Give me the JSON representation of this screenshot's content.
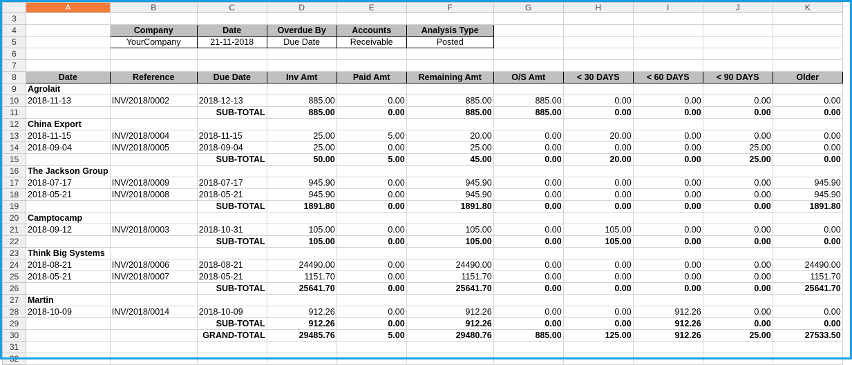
{
  "columns": [
    "A",
    "B",
    "C",
    "D",
    "E",
    "F",
    "G",
    "H",
    "I",
    "J",
    "K"
  ],
  "selected_column": "A",
  "info_headers": [
    "Company",
    "Date",
    "Overdue By",
    "Accounts",
    "Analysis Type"
  ],
  "info_values": [
    "YourCompany",
    "21-11-2018",
    "Due Date",
    "Receivable",
    "Posted"
  ],
  "table_headers": [
    "Date",
    "Reference",
    "Due Date",
    "Inv Amt",
    "Paid Amt",
    "Remaining Amt",
    "O/S Amt",
    "< 30 DAYS",
    "< 60 DAYS",
    "< 90 DAYS",
    "Older"
  ],
  "groups": [
    {
      "name": "Agrolait",
      "rows": [
        [
          "2018-11-13",
          "INV/2018/0002",
          "2018-12-13",
          "885.00",
          "0.00",
          "885.00",
          "885.00",
          "0.00",
          "0.00",
          "0.00",
          "0.00"
        ]
      ],
      "subtotal": [
        "885.00",
        "0.00",
        "885.00",
        "885.00",
        "0.00",
        "0.00",
        "0.00",
        "0.00"
      ]
    },
    {
      "name": "China Export",
      "rows": [
        [
          "2018-11-15",
          "INV/2018/0004",
          "2018-11-15",
          "25.00",
          "5.00",
          "20.00",
          "0.00",
          "20.00",
          "0.00",
          "0.00",
          "0.00"
        ],
        [
          "2018-09-04",
          "INV/2018/0005",
          "2018-09-04",
          "25.00",
          "0.00",
          "25.00",
          "0.00",
          "0.00",
          "0.00",
          "25.00",
          "0.00"
        ]
      ],
      "subtotal": [
        "50.00",
        "5.00",
        "45.00",
        "0.00",
        "20.00",
        "0.00",
        "25.00",
        "0.00"
      ]
    },
    {
      "name": "The Jackson Group",
      "rows": [
        [
          "2018-07-17",
          "INV/2018/0009",
          "2018-07-17",
          "945.90",
          "0.00",
          "945.90",
          "0.00",
          "0.00",
          "0.00",
          "0.00",
          "945.90"
        ],
        [
          "2018-05-21",
          "INV/2018/0008",
          "2018-05-21",
          "945.90",
          "0.00",
          "945.90",
          "0.00",
          "0.00",
          "0.00",
          "0.00",
          "945.90"
        ]
      ],
      "subtotal": [
        "1891.80",
        "0.00",
        "1891.80",
        "0.00",
        "0.00",
        "0.00",
        "0.00",
        "1891.80"
      ]
    },
    {
      "name": "Camptocamp",
      "rows": [
        [
          "2018-09-12",
          "INV/2018/0003",
          "2018-10-31",
          "105.00",
          "0.00",
          "105.00",
          "0.00",
          "105.00",
          "0.00",
          "0.00",
          "0.00"
        ]
      ],
      "subtotal": [
        "105.00",
        "0.00",
        "105.00",
        "0.00",
        "105.00",
        "0.00",
        "0.00",
        "0.00"
      ]
    },
    {
      "name": "Think Big Systems",
      "rows": [
        [
          "2018-08-21",
          "INV/2018/0006",
          "2018-08-21",
          "24490.00",
          "0.00",
          "24490.00",
          "0.00",
          "0.00",
          "0.00",
          "0.00",
          "24490.00"
        ],
        [
          "2018-05-21",
          "INV/2018/0007",
          "2018-05-21",
          "1151.70",
          "0.00",
          "1151.70",
          "0.00",
          "0.00",
          "0.00",
          "0.00",
          "1151.70"
        ]
      ],
      "subtotal": [
        "25641.70",
        "0.00",
        "25641.70",
        "0.00",
        "0.00",
        "0.00",
        "0.00",
        "25641.70"
      ]
    },
    {
      "name": "Martin",
      "rows": [
        [
          "2018-10-09",
          "INV/2018/0014",
          "2018-10-09",
          "912.26",
          "0.00",
          "912.26",
          "0.00",
          "0.00",
          "912.26",
          "0.00",
          "0.00"
        ]
      ],
      "subtotal": [
        "912.26",
        "0.00",
        "912.26",
        "0.00",
        "0.00",
        "912.26",
        "0.00",
        "0.00"
      ]
    }
  ],
  "subtotal_label": "SUB-TOTAL",
  "grandtotal_label": "GRAND-TOTAL",
  "grandtotal": [
    "29485.76",
    "5.00",
    "29480.76",
    "885.00",
    "125.00",
    "912.26",
    "25.00",
    "27533.50"
  ],
  "row_numbers": {
    "first_visible": 3,
    "last_visible": 32
  },
  "colors": {
    "header_fill": "#c0c0c0",
    "selected_column": "#f47a3a",
    "frame": "#1a9fe6"
  }
}
